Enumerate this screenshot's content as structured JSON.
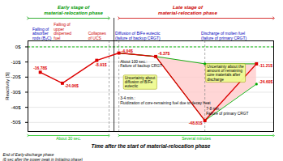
{
  "chart_data": {
    "type": "line",
    "xlabel": "Time after the start of material-relocation phase",
    "ylabel": "Reactivity [$]",
    "xlim": [
      0,
      10
    ],
    "ylim": [
      -56,
      4
    ],
    "yticks": [
      {
        "value": 0,
        "label": "0$"
      },
      {
        "value": -10,
        "label": "-10$"
      },
      {
        "value": -20,
        "label": "-20$"
      },
      {
        "value": -30,
        "label": "-30$"
      },
      {
        "value": -40,
        "label": "-40$"
      },
      {
        "value": -50,
        "label": "-50$"
      }
    ],
    "grid": true,
    "tick_labels": "y",
    "series": [
      {
        "type": "line",
        "color": "#dd0000",
        "marker": "square",
        "x": [
          0.5,
          1.4,
          2.8,
          3.7,
          5.2,
          7.2,
          9.3
        ],
        "values": [
          -16.78,
          -24.06,
          -8.91,
          -4.04,
          -6.37,
          -48.81,
          -11.21
        ],
        "value_labels": [
          "-16.78$",
          "-24.06$",
          "-8.91$",
          "-4.04$",
          "-6.37$",
          "-48.81$",
          "-11.21$"
        ]
      },
      {
        "type": "line",
        "color": "#00aa00",
        "marker": "circle",
        "x": [
          3.7,
          5.2,
          7.2,
          9.3
        ],
        "values": [
          -4.04,
          -6.37,
          -11.21,
          -11.21
        ]
      },
      {
        "type": "line",
        "color": "#00aa00",
        "marker": "circle",
        "x": [
          3.7,
          5.2,
          7.2,
          9.3
        ],
        "values": [
          -4.04,
          -6.37,
          -48.81,
          -24.6
        ],
        "value_labels": [
          null,
          null,
          null,
          "-24.60$"
        ]
      }
    ],
    "band": {
      "color": "#ffcccc",
      "x": [
        3.7,
        5.2,
        7.2,
        9.3
      ],
      "upper": [
        -4.04,
        -6.37,
        -11.21,
        -11.21
      ],
      "lower": [
        -4.04,
        -6.37,
        -48.81,
        -24.6
      ]
    },
    "reference_lines": [
      {
        "y": [
          0
        ],
        "color": "#00bb00",
        "line_style": "dashed"
      },
      {
        "x": [
          3.3,
          3.7,
          7.2
        ],
        "color": "#888888",
        "line_style": "dashed"
      }
    ],
    "stage_divider": {
      "x": 3.5,
      "color": "#000000"
    },
    "stages": [
      {
        "text": "Early stage of\nmaterial-relocation phase",
        "x": 1.85,
        "x1": 0.0,
        "x2": 3.3,
        "color": "#009900"
      },
      {
        "text": "Late stage of\nmaterial-relocation phase",
        "x": 6.5,
        "x1": 3.7,
        "x2": 10.0,
        "color": "#cc0000"
      }
    ],
    "events": [
      {
        "x": 0.18,
        "text": "Falling of\nabsorber\nrods (B₄C)",
        "color": "#0000bb"
      },
      {
        "x": 1.05,
        "text": "Falling of\nupper\ndispersed\nfuel",
        "color": "#cc0000"
      },
      {
        "x": 2.45,
        "text": "Collapses\nof UCS",
        "color": "#cc0000"
      },
      {
        "x": 3.55,
        "text": "Diffusion of B/Fe eutectic\n(failure of backup CRGT)",
        "color": "#0000bb"
      },
      {
        "x": 7.05,
        "text": "Discharge of molten fuel\n(failure of primary CRGT)",
        "color": "#0000bb"
      }
    ],
    "notes": [
      {
        "x": 3.75,
        "y": -8.5,
        "text": "About 100 sec.:\nFailure of backup CRGT"
      },
      {
        "x": 3.75,
        "y": -33,
        "text": "3-4 min.:\nFluidization of core-remaining fuel due to decay heat"
      },
      {
        "x": 7.25,
        "y": -40,
        "text": "7-8 min.:\nFailure of primary CRGT"
      }
    ],
    "boxes": [
      {
        "x": 3.9,
        "y": -11,
        "text": "Uncertainty about\ndiffusion of B/Fe\neutectic",
        "color": "#eefa90"
      },
      {
        "x": 7.25,
        "y": -11,
        "text": "Uncertainty about the\namount of remaining\ncore materials after\ndischarge",
        "color": "#eefa90"
      }
    ],
    "spans": [
      {
        "text": "About 30 sec.",
        "x1": 0.0,
        "x2": 3.3,
        "color": "#00bb00"
      },
      {
        "text": "Several minutes",
        "x1": 3.7,
        "x2": 10.0,
        "color": "#00bb00"
      }
    ],
    "footnote": "End of Early-discharge phase\n(6 sec after the power peak in Initiating phase)"
  }
}
